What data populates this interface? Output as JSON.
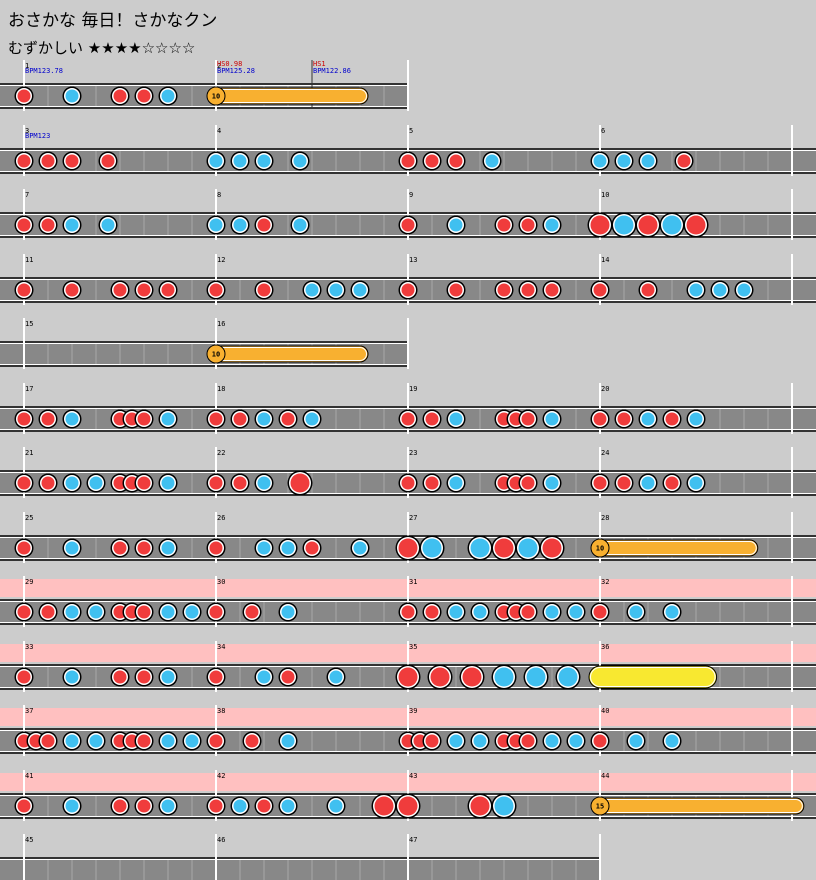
{
  "header": {
    "title": "おさかな 毎日！さかなクン",
    "difficulty_label": "むずかしい",
    "stars": "★★★★☆☆☆☆",
    "stars_filled": 4,
    "stars_total": 8
  },
  "colors": {
    "background": "#cccccc",
    "lane": "#888888",
    "highlight_row": "#ffc0c0",
    "don": "#f03c3c",
    "ka": "#40c0f0",
    "drumroll": "#f8b030",
    "balloon_yellow": "#f8e830",
    "bpm_text": "#0000cc",
    "hs_text": "#cc0000"
  },
  "rows": [
    {
      "measures": [
        1,
        2
      ],
      "events": [
        {
          "m": 0,
          "pos": 0,
          "text": "BPM123.78",
          "type": "bpm"
        },
        {
          "m": 1,
          "pos": 0,
          "text": "HS0.98",
          "type": "hs"
        },
        {
          "m": 1,
          "pos": 0,
          "text": "BPM125.28",
          "type": "bpm"
        },
        {
          "m": 1,
          "pos": 0.5,
          "text": "HS1",
          "type": "hs"
        },
        {
          "m": 1,
          "pos": 0.5,
          "text": "BPM122.86",
          "type": "bpm"
        }
      ],
      "notes": [
        {
          "m": 0,
          "pos": 0,
          "t": "d"
        },
        {
          "m": 0,
          "pos": 0.25,
          "t": "k"
        },
        {
          "m": 0,
          "pos": 0.5,
          "t": "d"
        },
        {
          "m": 0,
          "pos": 0.625,
          "t": "d"
        },
        {
          "m": 0,
          "pos": 0.75,
          "t": "k"
        }
      ],
      "rolls": [
        {
          "m": 1,
          "pos": 0,
          "end": 0.75,
          "count": "10",
          "style": "orange"
        }
      ]
    },
    {
      "measures": [
        3,
        4,
        5,
        6
      ],
      "events": [
        {
          "m": 0,
          "pos": 0,
          "text": "BPM123",
          "type": "bpm"
        }
      ],
      "notes": [
        {
          "m": 0,
          "pos": 0,
          "t": "d"
        },
        {
          "m": 0,
          "pos": 0.125,
          "t": "d"
        },
        {
          "m": 0,
          "pos": 0.25,
          "t": "d"
        },
        {
          "m": 0,
          "pos": 0.4375,
          "t": "d"
        },
        {
          "m": 1,
          "pos": 0,
          "t": "k"
        },
        {
          "m": 1,
          "pos": 0.125,
          "t": "k"
        },
        {
          "m": 1,
          "pos": 0.25,
          "t": "k"
        },
        {
          "m": 1,
          "pos": 0.4375,
          "t": "k"
        },
        {
          "m": 2,
          "pos": 0,
          "t": "d"
        },
        {
          "m": 2,
          "pos": 0.125,
          "t": "d"
        },
        {
          "m": 2,
          "pos": 0.25,
          "t": "d"
        },
        {
          "m": 2,
          "pos": 0.4375,
          "t": "k"
        },
        {
          "m": 3,
          "pos": 0,
          "t": "k"
        },
        {
          "m": 3,
          "pos": 0.125,
          "t": "k"
        },
        {
          "m": 3,
          "pos": 0.25,
          "t": "k"
        },
        {
          "m": 3,
          "pos": 0.4375,
          "t": "d"
        }
      ]
    },
    {
      "measures": [
        7,
        8,
        9,
        10
      ],
      "notes": [
        {
          "m": 0,
          "pos": 0,
          "t": "d"
        },
        {
          "m": 0,
          "pos": 0.125,
          "t": "d"
        },
        {
          "m": 0,
          "pos": 0.25,
          "t": "k"
        },
        {
          "m": 0,
          "pos": 0.4375,
          "t": "k"
        },
        {
          "m": 1,
          "pos": 0,
          "t": "k"
        },
        {
          "m": 1,
          "pos": 0.125,
          "t": "k"
        },
        {
          "m": 1,
          "pos": 0.25,
          "t": "d"
        },
        {
          "m": 1,
          "pos": 0.4375,
          "t": "k"
        },
        {
          "m": 2,
          "pos": 0,
          "t": "d"
        },
        {
          "m": 2,
          "pos": 0.25,
          "t": "k"
        },
        {
          "m": 2,
          "pos": 0.5,
          "t": "d"
        },
        {
          "m": 2,
          "pos": 0.625,
          "t": "d"
        },
        {
          "m": 2,
          "pos": 0.75,
          "t": "k"
        },
        {
          "m": 3,
          "pos": 0,
          "t": "D"
        },
        {
          "m": 3,
          "pos": 0.125,
          "t": "K"
        },
        {
          "m": 3,
          "pos": 0.25,
          "t": "D"
        },
        {
          "m": 3,
          "pos": 0.375,
          "t": "K"
        },
        {
          "m": 3,
          "pos": 0.5,
          "t": "D"
        }
      ]
    },
    {
      "measures": [
        11,
        12,
        13,
        14
      ],
      "notes": [
        {
          "m": 0,
          "pos": 0,
          "t": "d"
        },
        {
          "m": 0,
          "pos": 0.25,
          "t": "d"
        },
        {
          "m": 0,
          "pos": 0.5,
          "t": "d"
        },
        {
          "m": 0,
          "pos": 0.625,
          "t": "d"
        },
        {
          "m": 0,
          "pos": 0.75,
          "t": "d"
        },
        {
          "m": 1,
          "pos": 0,
          "t": "d"
        },
        {
          "m": 1,
          "pos": 0.25,
          "t": "d"
        },
        {
          "m": 1,
          "pos": 0.5,
          "t": "k"
        },
        {
          "m": 1,
          "pos": 0.625,
          "t": "k"
        },
        {
          "m": 1,
          "pos": 0.75,
          "t": "k"
        },
        {
          "m": 2,
          "pos": 0,
          "t": "d"
        },
        {
          "m": 2,
          "pos": 0.25,
          "t": "d"
        },
        {
          "m": 2,
          "pos": 0.5,
          "t": "d"
        },
        {
          "m": 2,
          "pos": 0.625,
          "t": "d"
        },
        {
          "m": 2,
          "pos": 0.75,
          "t": "d"
        },
        {
          "m": 3,
          "pos": 0,
          "t": "d"
        },
        {
          "m": 3,
          "pos": 0.25,
          "t": "d"
        },
        {
          "m": 3,
          "pos": 0.5,
          "t": "k"
        },
        {
          "m": 3,
          "pos": 0.625,
          "t": "k"
        },
        {
          "m": 3,
          "pos": 0.75,
          "t": "k"
        }
      ]
    },
    {
      "measures": [
        15,
        16
      ],
      "notes": [],
      "rolls": [
        {
          "m": 1,
          "pos": 0,
          "end": 0.75,
          "count": "10",
          "style": "orange"
        }
      ]
    },
    {
      "measures": [
        17,
        18,
        19,
        20
      ],
      "notes": [
        {
          "m": 0,
          "pos": 0,
          "t": "d"
        },
        {
          "m": 0,
          "pos": 0.125,
          "t": "d"
        },
        {
          "m": 0,
          "pos": 0.25,
          "t": "k"
        },
        {
          "m": 0,
          "pos": 0.5,
          "t": "d"
        },
        {
          "m": 0,
          "pos": 0.5625,
          "t": "d"
        },
        {
          "m": 0,
          "pos": 0.625,
          "t": "d"
        },
        {
          "m": 0,
          "pos": 0.75,
          "t": "k"
        },
        {
          "m": 1,
          "pos": 0,
          "t": "d"
        },
        {
          "m": 1,
          "pos": 0.125,
          "t": "d"
        },
        {
          "m": 1,
          "pos": 0.25,
          "t": "k"
        },
        {
          "m": 1,
          "pos": 0.375,
          "t": "d"
        },
        {
          "m": 1,
          "pos": 0.5,
          "t": "k"
        },
        {
          "m": 2,
          "pos": 0,
          "t": "d"
        },
        {
          "m": 2,
          "pos": 0.125,
          "t": "d"
        },
        {
          "m": 2,
          "pos": 0.25,
          "t": "k"
        },
        {
          "m": 2,
          "pos": 0.5,
          "t": "d"
        },
        {
          "m": 2,
          "pos": 0.5625,
          "t": "d"
        },
        {
          "m": 2,
          "pos": 0.625,
          "t": "d"
        },
        {
          "m": 2,
          "pos": 0.75,
          "t": "k"
        },
        {
          "m": 3,
          "pos": 0,
          "t": "d"
        },
        {
          "m": 3,
          "pos": 0.125,
          "t": "d"
        },
        {
          "m": 3,
          "pos": 0.25,
          "t": "k"
        },
        {
          "m": 3,
          "pos": 0.375,
          "t": "d"
        },
        {
          "m": 3,
          "pos": 0.5,
          "t": "k"
        }
      ]
    },
    {
      "measures": [
        21,
        22,
        23,
        24
      ],
      "notes": [
        {
          "m": 0,
          "pos": 0,
          "t": "d"
        },
        {
          "m": 0,
          "pos": 0.125,
          "t": "d"
        },
        {
          "m": 0,
          "pos": 0.25,
          "t": "k"
        },
        {
          "m": 0,
          "pos": 0.375,
          "t": "k"
        },
        {
          "m": 0,
          "pos": 0.5,
          "t": "d"
        },
        {
          "m": 0,
          "pos": 0.5625,
          "t": "d"
        },
        {
          "m": 0,
          "pos": 0.625,
          "t": "d"
        },
        {
          "m": 0,
          "pos": 0.75,
          "t": "k"
        },
        {
          "m": 1,
          "pos": 0,
          "t": "d"
        },
        {
          "m": 1,
          "pos": 0.125,
          "t": "d"
        },
        {
          "m": 1,
          "pos": 0.25,
          "t": "k"
        },
        {
          "m": 1,
          "pos": 0.4375,
          "t": "D"
        },
        {
          "m": 2,
          "pos": 0,
          "t": "d"
        },
        {
          "m": 2,
          "pos": 0.125,
          "t": "d"
        },
        {
          "m": 2,
          "pos": 0.25,
          "t": "k"
        },
        {
          "m": 2,
          "pos": 0.5,
          "t": "d"
        },
        {
          "m": 2,
          "pos": 0.5625,
          "t": "d"
        },
        {
          "m": 2,
          "pos": 0.625,
          "t": "d"
        },
        {
          "m": 2,
          "pos": 0.75,
          "t": "k"
        },
        {
          "m": 3,
          "pos": 0,
          "t": "d"
        },
        {
          "m": 3,
          "pos": 0.125,
          "t": "d"
        },
        {
          "m": 3,
          "pos": 0.25,
          "t": "k"
        },
        {
          "m": 3,
          "pos": 0.375,
          "t": "d"
        },
        {
          "m": 3,
          "pos": 0.5,
          "t": "k"
        }
      ]
    },
    {
      "measures": [
        25,
        26,
        27,
        28
      ],
      "notes": [
        {
          "m": 0,
          "pos": 0,
          "t": "d"
        },
        {
          "m": 0,
          "pos": 0.25,
          "t": "k"
        },
        {
          "m": 0,
          "pos": 0.5,
          "t": "d"
        },
        {
          "m": 0,
          "pos": 0.625,
          "t": "d"
        },
        {
          "m": 0,
          "pos": 0.75,
          "t": "k"
        },
        {
          "m": 1,
          "pos": 0,
          "t": "d"
        },
        {
          "m": 1,
          "pos": 0.25,
          "t": "k"
        },
        {
          "m": 1,
          "pos": 0.375,
          "t": "k"
        },
        {
          "m": 1,
          "pos": 0.5,
          "t": "d"
        },
        {
          "m": 1,
          "pos": 0.75,
          "t": "k"
        },
        {
          "m": 2,
          "pos": 0,
          "t": "D"
        },
        {
          "m": 2,
          "pos": 0.125,
          "t": "K"
        },
        {
          "m": 2,
          "pos": 0.375,
          "t": "K"
        },
        {
          "m": 2,
          "pos": 0.5,
          "t": "D"
        },
        {
          "m": 2,
          "pos": 0.625,
          "t": "K"
        },
        {
          "m": 2,
          "pos": 0.75,
          "t": "D"
        }
      ],
      "rolls": [
        {
          "m": 3,
          "pos": 0,
          "end": 0.78,
          "count": "10",
          "style": "orange"
        }
      ]
    },
    {
      "measures": [
        29,
        30,
        31,
        32
      ],
      "highlight": true,
      "notes": [
        {
          "m": 0,
          "pos": 0,
          "t": "d"
        },
        {
          "m": 0,
          "pos": 0.125,
          "t": "d"
        },
        {
          "m": 0,
          "pos": 0.25,
          "t": "k"
        },
        {
          "m": 0,
          "pos": 0.375,
          "t": "k"
        },
        {
          "m": 0,
          "pos": 0.5,
          "t": "d"
        },
        {
          "m": 0,
          "pos": 0.5625,
          "t": "d"
        },
        {
          "m": 0,
          "pos": 0.625,
          "t": "d"
        },
        {
          "m": 0,
          "pos": 0.75,
          "t": "k"
        },
        {
          "m": 0,
          "pos": 0.875,
          "t": "k"
        },
        {
          "m": 1,
          "pos": 0,
          "t": "d"
        },
        {
          "m": 1,
          "pos": 0.1875,
          "t": "d"
        },
        {
          "m": 1,
          "pos": 0.375,
          "t": "k"
        },
        {
          "m": 2,
          "pos": 0,
          "t": "d"
        },
        {
          "m": 2,
          "pos": 0.125,
          "t": "d"
        },
        {
          "m": 2,
          "pos": 0.25,
          "t": "k"
        },
        {
          "m": 2,
          "pos": 0.375,
          "t": "k"
        },
        {
          "m": 2,
          "pos": 0.5,
          "t": "d"
        },
        {
          "m": 2,
          "pos": 0.5625,
          "t": "d"
        },
        {
          "m": 2,
          "pos": 0.625,
          "t": "d"
        },
        {
          "m": 2,
          "pos": 0.75,
          "t": "k"
        },
        {
          "m": 2,
          "pos": 0.875,
          "t": "k"
        },
        {
          "m": 3,
          "pos": 0,
          "t": "d"
        },
        {
          "m": 3,
          "pos": 0.1875,
          "t": "k"
        },
        {
          "m": 3,
          "pos": 0.375,
          "t": "k"
        }
      ]
    },
    {
      "measures": [
        33,
        34,
        35,
        36
      ],
      "highlight": true,
      "notes": [
        {
          "m": 0,
          "pos": 0,
          "t": "d"
        },
        {
          "m": 0,
          "pos": 0.25,
          "t": "k"
        },
        {
          "m": 0,
          "pos": 0.5,
          "t": "d"
        },
        {
          "m": 0,
          "pos": 0.625,
          "t": "d"
        },
        {
          "m": 0,
          "pos": 0.75,
          "t": "k"
        },
        {
          "m": 1,
          "pos": 0,
          "t": "d"
        },
        {
          "m": 1,
          "pos": 0.25,
          "t": "k"
        },
        {
          "m": 1,
          "pos": 0.375,
          "t": "d"
        },
        {
          "m": 1,
          "pos": 0.625,
          "t": "k"
        },
        {
          "m": 2,
          "pos": 0,
          "t": "D"
        },
        {
          "m": 2,
          "pos": 0.1667,
          "t": "D"
        },
        {
          "m": 2,
          "pos": 0.3333,
          "t": "D"
        },
        {
          "m": 2,
          "pos": 0.5,
          "t": "K"
        },
        {
          "m": 2,
          "pos": 0.6667,
          "t": "K"
        },
        {
          "m": 2,
          "pos": 0.8333,
          "t": "K"
        }
      ],
      "rolls": [
        {
          "m": 3,
          "pos": 0,
          "end": 0.55,
          "count": "",
          "style": "yellow"
        }
      ]
    },
    {
      "measures": [
        37,
        38,
        39,
        40
      ],
      "highlight": true,
      "notes": [
        {
          "m": 0,
          "pos": 0,
          "t": "d"
        },
        {
          "m": 0,
          "pos": 0.0625,
          "t": "d"
        },
        {
          "m": 0,
          "pos": 0.125,
          "t": "d"
        },
        {
          "m": 0,
          "pos": 0.25,
          "t": "k"
        },
        {
          "m": 0,
          "pos": 0.375,
          "t": "k"
        },
        {
          "m": 0,
          "pos": 0.5,
          "t": "d"
        },
        {
          "m": 0,
          "pos": 0.5625,
          "t": "d"
        },
        {
          "m": 0,
          "pos": 0.625,
          "t": "d"
        },
        {
          "m": 0,
          "pos": 0.75,
          "t": "k"
        },
        {
          "m": 0,
          "pos": 0.875,
          "t": "k"
        },
        {
          "m": 1,
          "pos": 0,
          "t": "d"
        },
        {
          "m": 1,
          "pos": 0.1875,
          "t": "d"
        },
        {
          "m": 1,
          "pos": 0.375,
          "t": "k"
        },
        {
          "m": 2,
          "pos": 0,
          "t": "d"
        },
        {
          "m": 2,
          "pos": 0.0625,
          "t": "d"
        },
        {
          "m": 2,
          "pos": 0.125,
          "t": "d"
        },
        {
          "m": 2,
          "pos": 0.25,
          "t": "k"
        },
        {
          "m": 2,
          "pos": 0.375,
          "t": "k"
        },
        {
          "m": 2,
          "pos": 0.5,
          "t": "d"
        },
        {
          "m": 2,
          "pos": 0.5625,
          "t": "d"
        },
        {
          "m": 2,
          "pos": 0.625,
          "t": "d"
        },
        {
          "m": 2,
          "pos": 0.75,
          "t": "k"
        },
        {
          "m": 2,
          "pos": 0.875,
          "t": "k"
        },
        {
          "m": 3,
          "pos": 0,
          "t": "d"
        },
        {
          "m": 3,
          "pos": 0.1875,
          "t": "k"
        },
        {
          "m": 3,
          "pos": 0.375,
          "t": "k"
        }
      ]
    },
    {
      "measures": [
        41,
        42,
        43,
        44
      ],
      "highlight": true,
      "notes": [
        {
          "m": 0,
          "pos": 0,
          "t": "d"
        },
        {
          "m": 0,
          "pos": 0.25,
          "t": "k"
        },
        {
          "m": 0,
          "pos": 0.5,
          "t": "d"
        },
        {
          "m": 0,
          "pos": 0.625,
          "t": "d"
        },
        {
          "m": 0,
          "pos": 0.75,
          "t": "k"
        },
        {
          "m": 1,
          "pos": 0,
          "t": "d"
        },
        {
          "m": 1,
          "pos": 0.125,
          "t": "k"
        },
        {
          "m": 1,
          "pos": 0.25,
          "t": "d"
        },
        {
          "m": 1,
          "pos": 0.375,
          "t": "k"
        },
        {
          "m": 1,
          "pos": 0.625,
          "t": "k"
        },
        {
          "m": 2,
          "pos": -0.125,
          "t": "D"
        },
        {
          "m": 2,
          "pos": 0,
          "t": "D"
        },
        {
          "m": 2,
          "pos": 0.375,
          "t": "D"
        },
        {
          "m": 2,
          "pos": 0.5,
          "t": "K"
        }
      ],
      "rolls": [
        {
          "m": 3,
          "pos": 0,
          "end": 1.02,
          "count": "15",
          "style": "orange"
        }
      ]
    },
    {
      "measures": [
        45,
        46,
        47
      ],
      "notes": []
    }
  ]
}
